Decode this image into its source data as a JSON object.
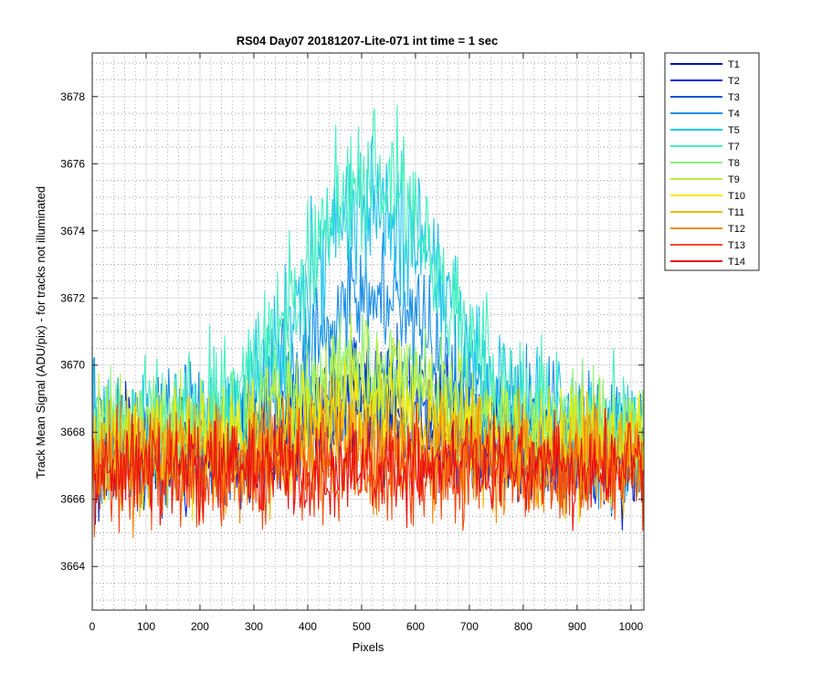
{
  "chart_data": {
    "type": "line",
    "title": "RS04 Day07 20181207-Lite-071 int time = 1 sec",
    "xlabel": "Pixels",
    "ylabel": "Track Mean Signal (ADU/pix) - for tracks not illuminated",
    "xlim": [
      0,
      1024
    ],
    "ylim": [
      3662.7,
      3679.3
    ],
    "xticks": [
      0,
      100,
      200,
      300,
      400,
      500,
      600,
      700,
      800,
      900,
      1000
    ],
    "yticks": [
      3664,
      3666,
      3668,
      3670,
      3672,
      3674,
      3676,
      3678
    ],
    "grid": "on (major solid, minor dotted)",
    "legend_location": "outside-right",
    "series": [
      {
        "name": "T1",
        "color": "#0010b5",
        "base": 3667.3,
        "peak": 1.0,
        "noise": 1.6
      },
      {
        "name": "T2",
        "color": "#0020e0",
        "base": 3667.4,
        "peak": 1.8,
        "noise": 1.6
      },
      {
        "name": "T3",
        "color": "#0a55d8",
        "base": 3667.4,
        "peak": 1.8,
        "noise": 1.6
      },
      {
        "name": "T4",
        "color": "#1a8fe6",
        "base": 3667.9,
        "peak": 4.0,
        "noise": 1.9
      },
      {
        "name": "T5",
        "color": "#20c4ee",
        "base": 3668.0,
        "peak": 6.8,
        "noise": 2.0
      },
      {
        "name": "T7",
        "color": "#45f0c0",
        "base": 3668.2,
        "peak": 7.4,
        "noise": 2.0
      },
      {
        "name": "T8",
        "color": "#90f080",
        "base": 3667.9,
        "peak": 2.2,
        "noise": 1.6
      },
      {
        "name": "T9",
        "color": "#b8f040",
        "base": 3667.8,
        "peak": 1.9,
        "noise": 1.6
      },
      {
        "name": "T10",
        "color": "#f5e800",
        "base": 3667.5,
        "peak": 1.2,
        "noise": 1.6
      },
      {
        "name": "T11",
        "color": "#f5b800",
        "base": 3667.3,
        "peak": 0.6,
        "noise": 1.6
      },
      {
        "name": "T12",
        "color": "#f58a10",
        "base": 3667.1,
        "peak": 0.2,
        "noise": 1.6
      },
      {
        "name": "T13",
        "color": "#f34a10",
        "base": 3666.9,
        "peak": 0.0,
        "noise": 1.6
      },
      {
        "name": "T14",
        "color": "#ea0f0f",
        "base": 3666.9,
        "peak": 0.0,
        "noise": 1.4
      }
    ]
  }
}
